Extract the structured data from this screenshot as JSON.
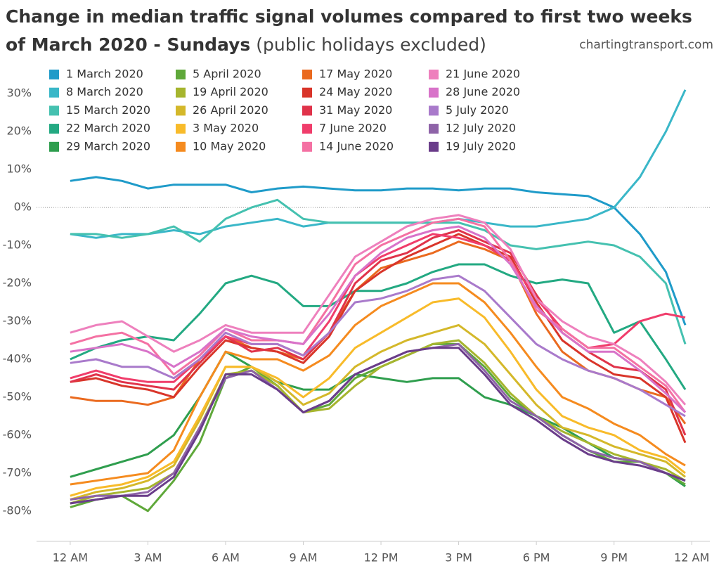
{
  "chart_data": {
    "type": "line",
    "title": "Change in median traffic signal volumes compared to first two weeks of March 2020 - Sundays",
    "subtitle": "(public holidays excluded)",
    "source": "chartingtransport.com",
    "x": [
      0,
      1,
      2,
      3,
      4,
      5,
      6,
      7,
      8,
      9,
      10,
      11,
      12,
      13,
      14,
      15,
      16,
      17,
      18,
      19,
      20,
      21,
      22,
      23,
      23.75
    ],
    "xlim": [
      -1.3,
      24.7
    ],
    "xticks": [
      {
        "value": 0,
        "label": "12 AM"
      },
      {
        "value": 3,
        "label": "3 AM"
      },
      {
        "value": 6,
        "label": "6 AM"
      },
      {
        "value": 9,
        "label": "9 AM"
      },
      {
        "value": 12,
        "label": "12 PM"
      },
      {
        "value": 15,
        "label": "3 PM"
      },
      {
        "value": 18,
        "label": "6 PM"
      },
      {
        "value": 21,
        "label": "9 PM"
      },
      {
        "value": 24,
        "label": "12 AM"
      }
    ],
    "ylim": [
      -88,
      38
    ],
    "yticks": [
      {
        "value": 30,
        "label": "30%"
      },
      {
        "value": 20,
        "label": "20%"
      },
      {
        "value": 10,
        "label": "10%"
      },
      {
        "value": 0,
        "label": "0%"
      },
      {
        "value": -10,
        "label": "-10%"
      },
      {
        "value": -20,
        "label": "-20%"
      },
      {
        "value": -30,
        "label": "-30%"
      },
      {
        "value": -40,
        "label": "-40%"
      },
      {
        "value": -50,
        "label": "-50%"
      },
      {
        "value": -60,
        "label": "-60%"
      },
      {
        "value": -70,
        "label": "-70%"
      },
      {
        "value": -80,
        "label": "-80%"
      }
    ],
    "grid": false,
    "zero_line": true,
    "legend": "top-left",
    "series": [
      {
        "name": "1 March 2020",
        "color": "#1f9bc9",
        "values": [
          7,
          8,
          7,
          5,
          6,
          6,
          6,
          4,
          5,
          5.5,
          5,
          4.5,
          4.5,
          5,
          5,
          4.5,
          5,
          5,
          4,
          3.5,
          3,
          0,
          -7,
          -17,
          -31
        ]
      },
      {
        "name": "8 March 2020",
        "color": "#3ab7c8",
        "values": [
          -7,
          -8,
          -7,
          -7,
          -6,
          -7,
          -5,
          -4,
          -3,
          -5,
          -4,
          -4,
          -4,
          -4,
          -4,
          -3,
          -4,
          -5,
          -5,
          -4,
          -3,
          0,
          8,
          20,
          31
        ]
      },
      {
        "name": "15 March 2020",
        "color": "#45c1b0",
        "values": [
          -7,
          -7,
          -8,
          -7,
          -5,
          -9,
          -3,
          0,
          2,
          -3,
          -4,
          -4,
          -4,
          -4,
          -4,
          -4,
          -6,
          -10,
          -11,
          -10,
          -9,
          -10,
          -13,
          -20,
          -36
        ]
      },
      {
        "name": "22 March 2020",
        "color": "#23a982",
        "values": [
          -40,
          -37,
          -35,
          -34,
          -35,
          -28,
          -20,
          -18,
          -20,
          -26,
          -26,
          -22,
          -22,
          -20,
          -17,
          -15,
          -15,
          -18,
          -20,
          -19,
          -20,
          -33,
          -30,
          -40,
          -48
        ]
      },
      {
        "name": "29 March 2020",
        "color": "#2f9e4e",
        "values": [
          -71,
          -69,
          -67,
          -65,
          -60,
          -50,
          -38,
          -42,
          -46,
          -48,
          -48,
          -44,
          -45,
          -46,
          -45,
          -45,
          -50,
          -52,
          -55,
          -58,
          -62,
          -66,
          -67,
          -70,
          -73.5
        ]
      },
      {
        "name": "5 April 2020",
        "color": "#5fa83a",
        "values": [
          -79,
          -77,
          -76,
          -80,
          -72,
          -62,
          -45,
          -42,
          -47,
          -54,
          -52,
          -45,
          -42,
          -39,
          -36,
          -36,
          -42,
          -50,
          -55,
          -60,
          -64,
          -67,
          -67,
          -70,
          -73
        ]
      },
      {
        "name": "19 April 2020",
        "color": "#a6b52e",
        "values": [
          -78,
          -76,
          -75,
          -74,
          -70,
          -58,
          -44,
          -43,
          -47,
          -54,
          -53,
          -47,
          -42,
          -39,
          -36,
          -35,
          -41,
          -49,
          -55,
          -59,
          -62,
          -65,
          -67,
          -69,
          -72
        ]
      },
      {
        "name": "26 April 2020",
        "color": "#d4b82a",
        "values": [
          -77,
          -75,
          -74,
          -72,
          -68,
          -56,
          -42,
          -42,
          -46,
          -52,
          -49,
          -42,
          -38,
          -35,
          -33,
          -31,
          -36,
          -44,
          -52,
          -58,
          -60,
          -63,
          -65,
          -67,
          -71
        ]
      },
      {
        "name": "3 May 2020",
        "color": "#f8bb2a",
        "values": [
          -76,
          -74,
          -73,
          -71,
          -67,
          -55,
          -42,
          -42,
          -45,
          -50,
          -45,
          -37,
          -33,
          -29,
          -25,
          -24,
          -29,
          -38,
          -48,
          -55,
          -58,
          -60,
          -64,
          -66,
          -70
        ]
      },
      {
        "name": "10 May 2020",
        "color": "#f58b1f",
        "values": [
          -73,
          -72,
          -71,
          -70,
          -64,
          -50,
          -38,
          -40,
          -40,
          -43,
          -39,
          -31,
          -26,
          -23,
          -20,
          -20,
          -25,
          -33,
          -42,
          -50,
          -53,
          -57,
          -60,
          -65,
          -68
        ]
      },
      {
        "name": "17 May 2020",
        "color": "#ea6a1f",
        "values": [
          -50,
          -51,
          -51,
          -52,
          -50,
          -40,
          -34,
          -37,
          -38,
          -40,
          -33,
          -22,
          -16,
          -14,
          -12,
          -9,
          -11,
          -14,
          -28,
          -38,
          -43,
          -45,
          -48,
          -50,
          -57
        ]
      },
      {
        "name": "24 May 2020",
        "color": "#d9352a",
        "values": [
          -46,
          -45,
          -47,
          -48,
          -50,
          -42,
          -35,
          -37,
          -38,
          -41,
          -34,
          -22,
          -17,
          -13,
          -10,
          -7,
          -10,
          -13,
          -25,
          -35,
          -40,
          -44,
          -45,
          -50,
          -62
        ]
      },
      {
        "name": "31 May 2020",
        "color": "#e0334a",
        "values": [
          -46,
          -44,
          -46,
          -47,
          -48,
          -41,
          -34,
          -38,
          -37,
          -40,
          -33,
          -20,
          -14,
          -12,
          -8,
          -6,
          -9,
          -12,
          -23,
          -33,
          -38,
          -42,
          -43,
          -48,
          -60
        ]
      },
      {
        "name": "7 June 2020",
        "color": "#f03d6b",
        "values": [
          -45,
          -43,
          -45,
          -46,
          -46,
          -40,
          -34,
          -36,
          -36,
          -39,
          -30,
          -18,
          -13,
          -10,
          -7,
          -8,
          -10,
          -14,
          -24,
          -32,
          -37,
          -36,
          -30,
          -28,
          -29
        ]
      },
      {
        "name": "14 June 2020",
        "color": "#f471a3",
        "values": [
          -36,
          -34,
          -33,
          -36,
          -44,
          -39,
          -32,
          -35,
          -35,
          -36,
          -26,
          -15,
          -10,
          -7,
          -4,
          -3,
          -5,
          -14,
          -27,
          -32,
          -37,
          -37,
          -42,
          -47,
          -54
        ]
      },
      {
        "name": "21 June 2020",
        "color": "#ee80bd",
        "values": [
          -33,
          -31,
          -30,
          -34,
          -38,
          -35,
          -31,
          -33,
          -33,
          -33,
          -23,
          -13,
          -9,
          -5,
          -3,
          -2,
          -4,
          -11,
          -24,
          -30,
          -34,
          -36,
          -40,
          -46,
          -52
        ]
      },
      {
        "name": "28 June 2020",
        "color": "#d873c9",
        "values": [
          -38,
          -37,
          -36,
          -38,
          -42,
          -38,
          -32,
          -34,
          -35,
          -36,
          -28,
          -18,
          -12,
          -8,
          -6,
          -5,
          -8,
          -15,
          -26,
          -33,
          -38,
          -38,
          -43,
          -49,
          -54
        ]
      },
      {
        "name": "5 July 2020",
        "color": "#a97acb",
        "values": [
          -41,
          -40,
          -42,
          -42,
          -45,
          -40,
          -33,
          -36,
          -36,
          -39,
          -33,
          -25,
          -24,
          -22,
          -19,
          -18,
          -22,
          -29,
          -36,
          -40,
          -43,
          -45,
          -48,
          -52,
          -55
        ]
      },
      {
        "name": "12 July 2020",
        "color": "#8e63a8",
        "values": [
          -77,
          -76,
          -76,
          -75,
          -70,
          -58,
          -45,
          -43,
          -48,
          -54,
          -51,
          -44,
          -41,
          -38,
          -37,
          -36,
          -43,
          -51,
          -55,
          -60,
          -64,
          -66,
          -67,
          -70,
          -72
        ]
      },
      {
        "name": "19 July 2020",
        "color": "#6a3d8a",
        "values": [
          -78,
          -77,
          -76,
          -76,
          -71,
          -59,
          -44,
          -44,
          -48,
          -54,
          -51,
          -44,
          -41,
          -38,
          -37,
          -37,
          -44,
          -52,
          -56,
          -61,
          -65,
          -67,
          -68,
          -70,
          -72
        ]
      }
    ]
  }
}
